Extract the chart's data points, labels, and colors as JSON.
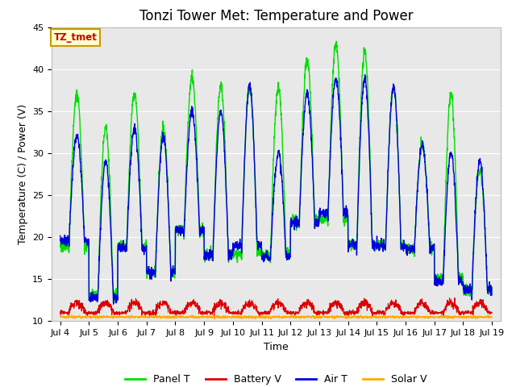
{
  "title": "Tonzi Tower Met: Temperature and Power",
  "xlabel": "Time",
  "ylabel": "Temperature (C) / Power (V)",
  "ylim": [
    10,
    45
  ],
  "xlim_days": [
    3.7,
    19.3
  ],
  "x_tick_labels": [
    "Jul 4",
    "Jul 5",
    "Jul 6",
    "Jul 7",
    "Jul 8",
    "Jul 9",
    "Jul 10",
    "Jul 11",
    "Jul 12",
    "Jul 13",
    "Jul 14",
    "Jul 15",
    "Jul 16",
    "Jul 17",
    "Jul 18",
    "Jul 19"
  ],
  "x_tick_positions": [
    4,
    5,
    6,
    7,
    8,
    9,
    10,
    11,
    12,
    13,
    14,
    15,
    16,
    17,
    18,
    19
  ],
  "panel_t_color": "#00dd00",
  "battery_v_color": "#dd0000",
  "air_t_color": "#0000dd",
  "solar_v_color": "#ffaa00",
  "bg_color": "#e8e8e8",
  "fig_bg_color": "#ffffff",
  "legend_labels": [
    "Panel T",
    "Battery V",
    "Air T",
    "Solar V"
  ],
  "tz_label": "TZ_tmet",
  "tz_text_color": "#cc0000",
  "tz_box_color": "#ffffcc",
  "tz_edge_color": "#cc9900",
  "title_fontsize": 12,
  "axis_label_fontsize": 9,
  "tick_fontsize": 8,
  "legend_fontsize": 9
}
